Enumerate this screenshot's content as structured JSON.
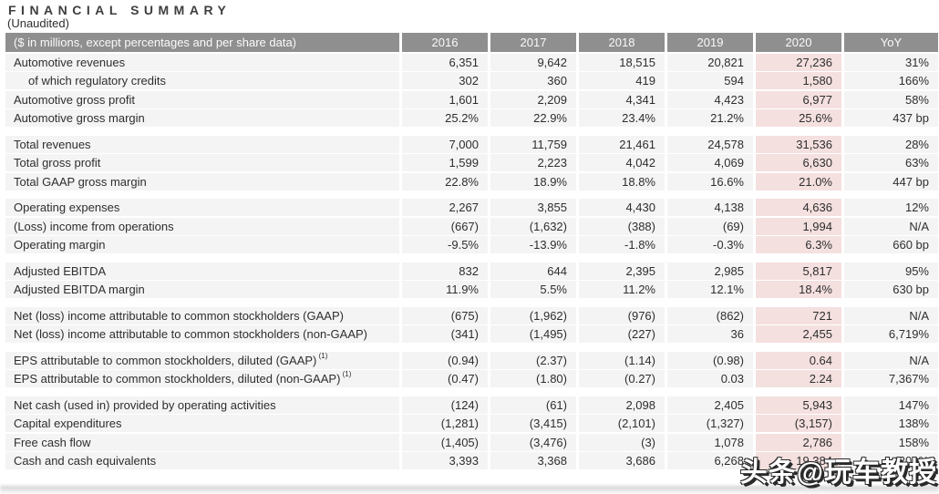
{
  "title": "FINANCIAL SUMMARY",
  "subtitle": "(Unaudited)",
  "colors": {
    "header_bg": "#8f8f8f",
    "header_text": "#fafafa",
    "row_bg": "#f4f4f4",
    "highlight_2020": "#f4e0df",
    "text": "#2e2e2e"
  },
  "watermark": {
    "text": "头条@玩车教授"
  },
  "table": {
    "header": {
      "label": "($ in millions, except percentages and per share data)",
      "years": [
        "2016",
        "2017",
        "2018",
        "2019",
        "2020"
      ],
      "yoy": "YoY"
    },
    "highlight_column_index": 4,
    "sections": [
      {
        "rows": [
          {
            "label": "Automotive revenues",
            "values": [
              "6,351",
              "9,642",
              "18,515",
              "20,821",
              "27,236",
              "31%"
            ]
          },
          {
            "label": "of which regulatory credits",
            "indent": true,
            "values": [
              "302",
              "360",
              "419",
              "594",
              "1,580",
              "166%"
            ]
          },
          {
            "label": "Automotive gross profit",
            "values": [
              "1,601",
              "2,209",
              "4,341",
              "4,423",
              "6,977",
              "58%"
            ]
          },
          {
            "label": "Automotive gross margin",
            "values": [
              "25.2%",
              "22.9%",
              "23.4%",
              "21.2%",
              "25.6%",
              "437 bp"
            ]
          }
        ]
      },
      {
        "rows": [
          {
            "label": "Total revenues",
            "values": [
              "7,000",
              "11,759",
              "21,461",
              "24,578",
              "31,536",
              "28%"
            ]
          },
          {
            "label": "Total gross profit",
            "values": [
              "1,599",
              "2,223",
              "4,042",
              "4,069",
              "6,630",
              "63%"
            ]
          },
          {
            "label": "Total GAAP gross margin",
            "values": [
              "22.8%",
              "18.9%",
              "18.8%",
              "16.6%",
              "21.0%",
              "447 bp"
            ]
          }
        ]
      },
      {
        "rows": [
          {
            "label": "Operating expenses",
            "values": [
              "2,267",
              "3,855",
              "4,430",
              "4,138",
              "4,636",
              "12%"
            ]
          },
          {
            "label": "(Loss) income from operations",
            "values": [
              "(667)",
              "(1,632)",
              "(388)",
              "(69)",
              "1,994",
              "N/A"
            ]
          },
          {
            "label": "Operating margin",
            "values": [
              "-9.5%",
              "-13.9%",
              "-1.8%",
              "-0.3%",
              "6.3%",
              "660 bp"
            ]
          }
        ]
      },
      {
        "rows": [
          {
            "label": "Adjusted EBITDA",
            "values": [
              "832",
              "644",
              "2,395",
              "2,985",
              "5,817",
              "95%"
            ]
          },
          {
            "label": "Adjusted EBITDA margin",
            "values": [
              "11.9%",
              "5.5%",
              "11.2%",
              "12.1%",
              "18.4%",
              "630 bp"
            ]
          }
        ]
      },
      {
        "rows": [
          {
            "label": "Net (loss) income attributable to common stockholders (GAAP)",
            "values": [
              "(675)",
              "(1,962)",
              "(976)",
              "(862)",
              "721",
              "N/A"
            ]
          },
          {
            "label": "Net (loss) income attributable to common stockholders (non-GAAP)",
            "values": [
              "(341)",
              "(1,495)",
              "(227)",
              "36",
              "2,455",
              "6,719%"
            ]
          }
        ]
      },
      {
        "rows": [
          {
            "label": "EPS attributable to common stockholders, diluted (GAAP)",
            "sup": "(1)",
            "values": [
              "(0.94)",
              "(2.37)",
              "(1.14)",
              "(0.98)",
              "0.64",
              "N/A"
            ]
          },
          {
            "label": "EPS attributable to common stockholders, diluted (non-GAAP)",
            "sup": "(1)",
            "values": [
              "(0.47)",
              "(1.80)",
              "(0.27)",
              "0.03",
              "2.24",
              "7,367%"
            ]
          }
        ]
      },
      {
        "rows": [
          {
            "label": "Net cash (used in) provided by operating activities",
            "values": [
              "(124)",
              "(61)",
              "2,098",
              "2,405",
              "5,943",
              "147%"
            ]
          },
          {
            "label": "Capital expenditures",
            "values": [
              "(1,281)",
              "(3,415)",
              "(2,101)",
              "(1,327)",
              "(3,157)",
              "138%"
            ]
          },
          {
            "label": "Free cash flow",
            "values": [
              "(1,405)",
              "(3,476)",
              "(3)",
              "1,078",
              "2,786",
              "158%"
            ]
          },
          {
            "label": "Cash and cash equivalents",
            "values": [
              "3,393",
              "3,368",
              "3,686",
              "6,268",
              "19,384",
              "209%"
            ]
          }
        ]
      }
    ]
  }
}
